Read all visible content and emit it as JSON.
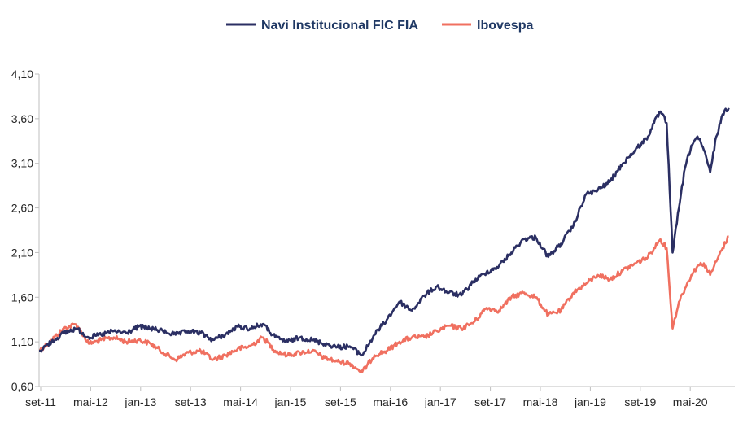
{
  "chart_data": {
    "type": "line",
    "title": "",
    "xlabel": "",
    "ylabel": "",
    "ylim": [
      0.6,
      4.1
    ],
    "y_ticks": [
      "4,10",
      "3,60",
      "3,10",
      "2,60",
      "2,10",
      "1,60",
      "1,10",
      "0,60"
    ],
    "x_ticks": [
      "set-11",
      "mai-12",
      "jan-13",
      "set-13",
      "mai-14",
      "jan-15",
      "set-15",
      "mai-16",
      "jan-17",
      "set-17",
      "mai-18",
      "jan-19",
      "set-19",
      "mai-20"
    ],
    "grid": false,
    "legend_position": "top-center",
    "series": [
      {
        "name": "Navi Institucional FIC FIA",
        "color": "#2b2f63",
        "x": [
          "2011-09",
          "2011-11",
          "2012-01",
          "2012-03",
          "2012-05",
          "2012-07",
          "2012-09",
          "2012-11",
          "2013-01",
          "2013-03",
          "2013-05",
          "2013-07",
          "2013-09",
          "2013-11",
          "2014-01",
          "2014-03",
          "2014-05",
          "2014-07",
          "2014-09",
          "2014-11",
          "2015-01",
          "2015-03",
          "2015-05",
          "2015-07",
          "2015-09",
          "2015-11",
          "2016-01",
          "2016-03",
          "2016-05",
          "2016-07",
          "2016-09",
          "2016-11",
          "2017-01",
          "2017-03",
          "2017-05",
          "2017-07",
          "2017-09",
          "2017-11",
          "2018-01",
          "2018-03",
          "2018-05",
          "2018-07",
          "2018-09",
          "2018-11",
          "2019-01",
          "2019-03",
          "2019-05",
          "2019-07",
          "2019-09",
          "2019-11",
          "2019-12",
          "2020-01",
          "2020-02",
          "2020-03",
          "2020-04",
          "2020-05",
          "2020-06",
          "2020-07",
          "2020-08",
          "2020-09",
          "2020-10",
          "2020-11",
          "2020-12"
        ],
        "values": [
          1.0,
          1.1,
          1.2,
          1.25,
          1.15,
          1.18,
          1.22,
          1.2,
          1.27,
          1.25,
          1.22,
          1.18,
          1.22,
          1.2,
          1.12,
          1.18,
          1.27,
          1.25,
          1.3,
          1.15,
          1.1,
          1.15,
          1.12,
          1.08,
          1.04,
          1.05,
          0.95,
          1.18,
          1.35,
          1.55,
          1.45,
          1.62,
          1.72,
          1.65,
          1.62,
          1.78,
          1.88,
          1.95,
          2.1,
          2.25,
          2.27,
          2.05,
          2.2,
          2.4,
          2.75,
          2.8,
          2.9,
          3.1,
          3.25,
          3.4,
          3.55,
          3.68,
          3.55,
          2.1,
          2.6,
          3.05,
          3.3,
          3.4,
          3.25,
          3.0,
          3.4,
          3.65,
          3.72
        ]
      },
      {
        "name": "Ibovespa",
        "color": "#f07060",
        "x": [
          "2011-09",
          "2011-11",
          "2012-01",
          "2012-03",
          "2012-05",
          "2012-07",
          "2012-09",
          "2012-11",
          "2013-01",
          "2013-03",
          "2013-05",
          "2013-07",
          "2013-09",
          "2013-11",
          "2014-01",
          "2014-03",
          "2014-05",
          "2014-07",
          "2014-09",
          "2014-11",
          "2015-01",
          "2015-03",
          "2015-05",
          "2015-07",
          "2015-09",
          "2015-11",
          "2016-01",
          "2016-03",
          "2016-05",
          "2016-07",
          "2016-09",
          "2016-11",
          "2017-01",
          "2017-03",
          "2017-05",
          "2017-07",
          "2017-09",
          "2017-11",
          "2018-01",
          "2018-03",
          "2018-05",
          "2018-07",
          "2018-09",
          "2018-11",
          "2019-01",
          "2019-03",
          "2019-05",
          "2019-07",
          "2019-09",
          "2019-11",
          "2019-12",
          "2020-01",
          "2020-02",
          "2020-03",
          "2020-04",
          "2020-05",
          "2020-06",
          "2020-07",
          "2020-08",
          "2020-09",
          "2020-10",
          "2020-11",
          "2020-12"
        ],
        "values": [
          1.0,
          1.12,
          1.25,
          1.3,
          1.08,
          1.12,
          1.15,
          1.1,
          1.12,
          1.08,
          0.98,
          0.9,
          0.98,
          1.0,
          0.9,
          0.95,
          1.02,
          1.05,
          1.15,
          1.0,
          0.95,
          0.98,
          1.0,
          0.92,
          0.88,
          0.86,
          0.76,
          0.95,
          1.0,
          1.1,
          1.15,
          1.15,
          1.22,
          1.28,
          1.25,
          1.32,
          1.48,
          1.45,
          1.6,
          1.65,
          1.6,
          1.4,
          1.45,
          1.65,
          1.75,
          1.85,
          1.8,
          1.9,
          1.98,
          2.05,
          2.15,
          2.25,
          2.15,
          1.25,
          1.55,
          1.7,
          1.85,
          1.95,
          1.98,
          1.85,
          2.0,
          2.15,
          2.28
        ]
      }
    ]
  }
}
